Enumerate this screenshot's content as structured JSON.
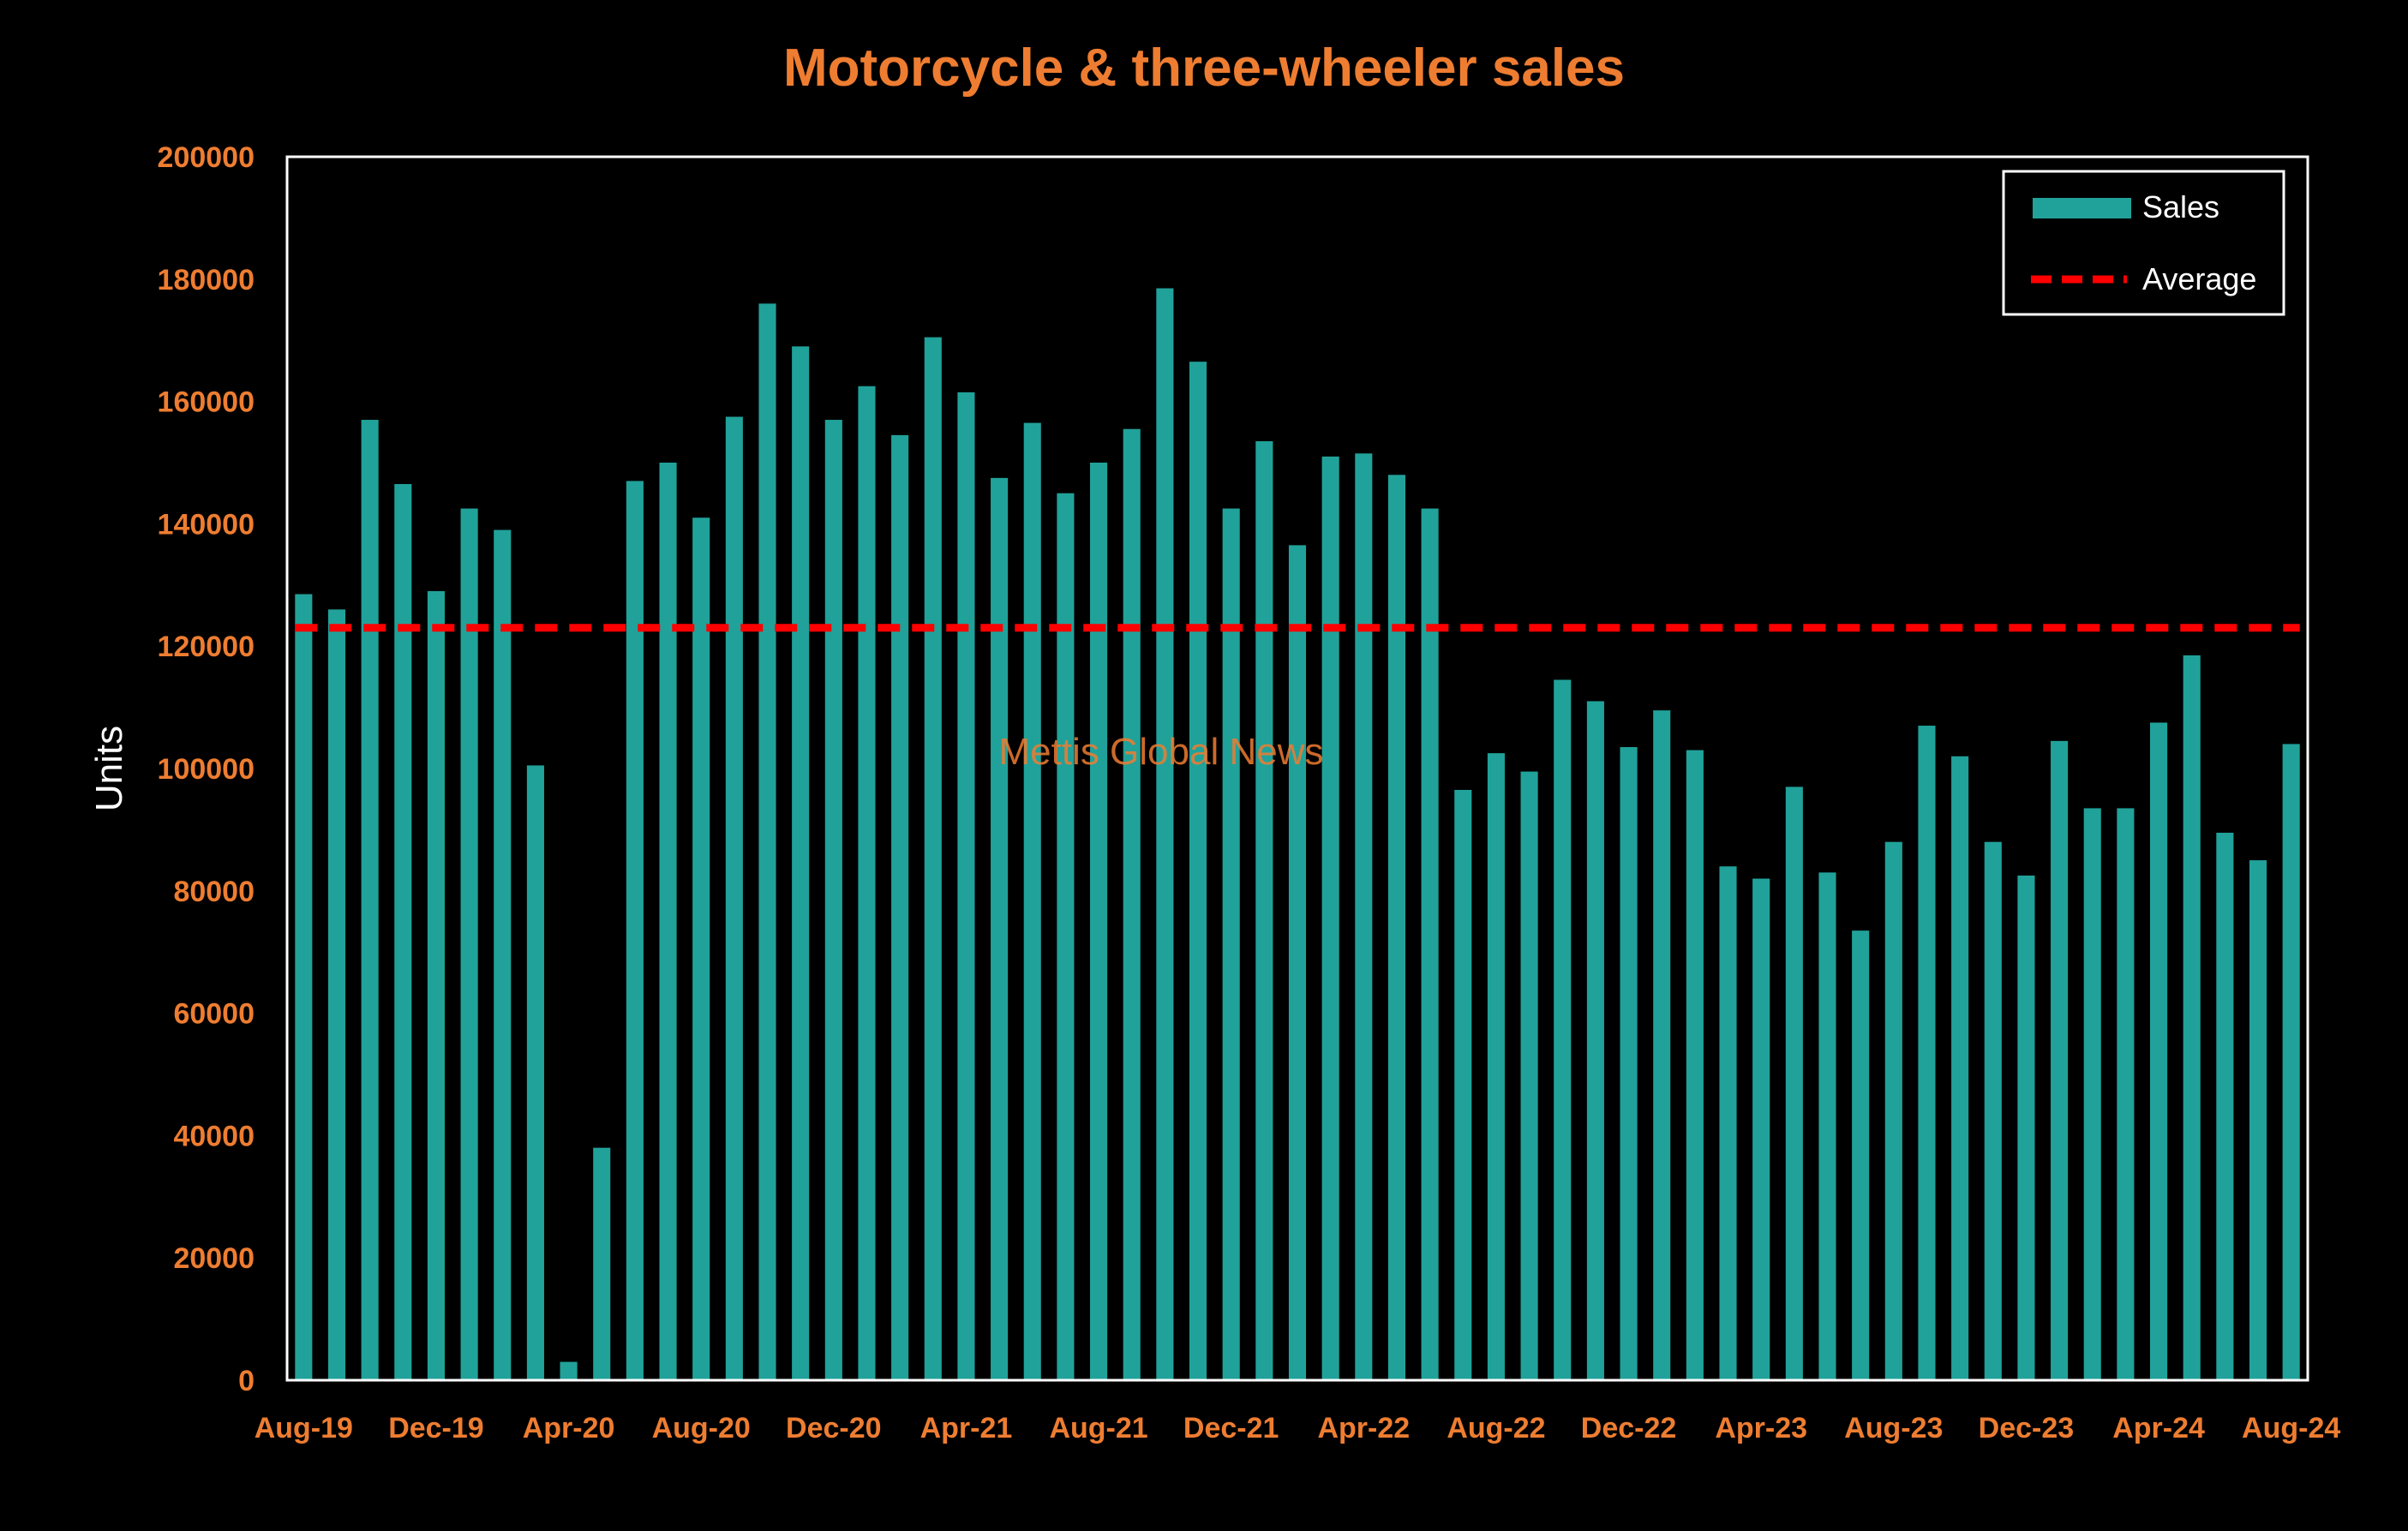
{
  "colors": {
    "background": "#000000",
    "bar": "#20a29a",
    "average": "#ff0000",
    "accent": "#ee7d31",
    "frame": "#ffffff"
  },
  "watermark": "Mettis Global News",
  "chart_data": {
    "type": "bar",
    "title": "Motorcycle & three-wheeler sales",
    "xlabel": "",
    "ylabel": "Units",
    "ylim": [
      0,
      200000
    ],
    "y_ticks": [
      0,
      20000,
      40000,
      60000,
      80000,
      100000,
      120000,
      140000,
      160000,
      180000,
      200000
    ],
    "x_tick_labels": [
      "Aug-19",
      "Dec-19",
      "Apr-20",
      "Aug-20",
      "Dec-20",
      "Apr-21",
      "Aug-21",
      "Dec-21",
      "Apr-22",
      "Aug-22",
      "Dec-22",
      "Apr-23",
      "Aug-23",
      "Dec-23",
      "Apr-24",
      "Aug-24"
    ],
    "categories": [
      "Aug-19",
      "Sep-19",
      "Oct-19",
      "Nov-19",
      "Dec-19",
      "Jan-20",
      "Feb-20",
      "Mar-20",
      "Apr-20",
      "May-20",
      "Jun-20",
      "Jul-20",
      "Aug-20",
      "Sep-20",
      "Oct-20",
      "Nov-20",
      "Dec-20",
      "Jan-21",
      "Feb-21",
      "Mar-21",
      "Apr-21",
      "May-21",
      "Jun-21",
      "Jul-21",
      "Aug-21",
      "Sep-21",
      "Oct-21",
      "Nov-21",
      "Dec-21",
      "Jan-22",
      "Feb-22",
      "Mar-22",
      "Apr-22",
      "May-22",
      "Jun-22",
      "Jul-22",
      "Aug-22",
      "Sep-22",
      "Oct-22",
      "Nov-22",
      "Dec-22",
      "Jan-23",
      "Feb-23",
      "Mar-23",
      "Apr-23",
      "May-23",
      "Jun-23",
      "Jul-23",
      "Aug-23",
      "Sep-23",
      "Oct-23",
      "Nov-23",
      "Dec-23",
      "Jan-24",
      "Feb-24",
      "Mar-24",
      "Apr-24",
      "May-24",
      "Jun-24",
      "Jul-24",
      "Aug-24"
    ],
    "series": [
      {
        "name": "Sales",
        "type": "bar",
        "values": [
          128500,
          126000,
          157000,
          146500,
          129000,
          142500,
          139000,
          100500,
          3000,
          38000,
          147000,
          150000,
          141000,
          157500,
          176000,
          169000,
          157000,
          162500,
          154500,
          170500,
          161500,
          147500,
          156500,
          145000,
          150000,
          155500,
          178500,
          166500,
          142500,
          153500,
          136500,
          151000,
          151500,
          148000,
          142500,
          96500,
          102500,
          99500,
          114500,
          111000,
          103500,
          109500,
          103000,
          84000,
          82000,
          97000,
          83000,
          73500,
          88000,
          107000,
          102000,
          88000,
          82500,
          104500,
          93500,
          93500,
          107500,
          118500,
          89500,
          85000,
          104000
        ]
      },
      {
        "name": "Average",
        "type": "line",
        "style": "dashed",
        "value": 123000
      }
    ],
    "grid": false,
    "legend": "top-right"
  }
}
